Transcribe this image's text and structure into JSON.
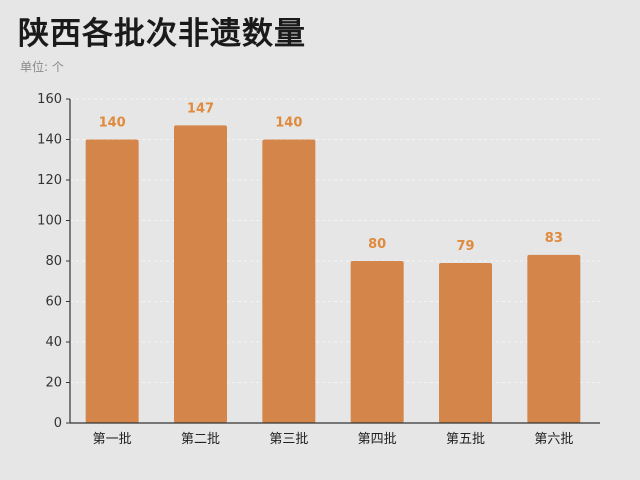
{
  "header": {
    "title": "陕西各批次非遗数量",
    "unit": "单位: 个"
  },
  "colors": {
    "bar": "#d4864a",
    "data_label": "#e08a3c",
    "grid": "#f4f4f4",
    "axis": "#333333",
    "background": "#e6e6e6"
  },
  "chart_data": {
    "type": "bar",
    "title": "陕西各批次非遗数量",
    "subtitle": "单位: 个",
    "xlabel": "",
    "ylabel": "",
    "categories": [
      "第一批",
      "第二批",
      "第三批",
      "第四批",
      "第五批",
      "第六批"
    ],
    "values": [
      140,
      147,
      140,
      80,
      79,
      83
    ],
    "ylim": [
      0,
      160
    ],
    "yticks": [
      0,
      20,
      40,
      60,
      80,
      100,
      120,
      140,
      160
    ],
    "grid": true,
    "data_labels": true,
    "legend": "none"
  }
}
